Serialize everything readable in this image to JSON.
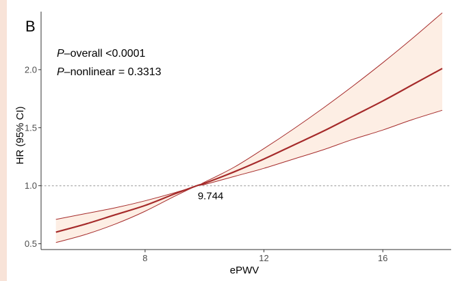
{
  "chart_data": {
    "type": "line",
    "panel_label": "B",
    "xlabel": "ePWV",
    "ylabel": "HR (95% CI)",
    "xlim": [
      4.5,
      18.3
    ],
    "ylim": [
      0.45,
      2.5
    ],
    "x_ticks": [
      8,
      12,
      16
    ],
    "x_tick_labels": [
      "8",
      "12",
      "16"
    ],
    "y_ticks": [
      0.5,
      1.0,
      1.5,
      2.0
    ],
    "y_tick_labels": [
      "0.5",
      "1.0",
      "1.5",
      "2.0"
    ],
    "grid": false,
    "reference_line": {
      "y": 1.0,
      "style": "dotted"
    },
    "reference_point": {
      "x": 9.744,
      "y": 1.0,
      "label": "9.744"
    },
    "annotations": {
      "p_overall_prefix": "P",
      "p_overall_rest": "–overall <0.0001",
      "p_nonlinear_prefix": "P",
      "p_nonlinear_rest": "–nonlinear = 0.3313"
    },
    "colors": {
      "line": "#a52a2a",
      "band_fill": "#fdeee4",
      "reference": "#b3b3b3",
      "axis": "#333333"
    },
    "series": [
      {
        "role": "estimate",
        "x": [
          5.0,
          6.0,
          7.0,
          8.0,
          9.0,
          9.744,
          10.0,
          11.0,
          12.0,
          13.0,
          14.0,
          15.0,
          16.0,
          17.0,
          18.0
        ],
        "values": [
          0.6,
          0.67,
          0.75,
          0.83,
          0.93,
          1.0,
          1.02,
          1.12,
          1.23,
          1.35,
          1.47,
          1.6,
          1.73,
          1.87,
          2.01
        ]
      },
      {
        "role": "upper_ci",
        "x": [
          5.0,
          6.0,
          7.0,
          8.0,
          9.0,
          9.744,
          10.0,
          11.0,
          12.0,
          13.0,
          14.0,
          15.0,
          16.0,
          17.0,
          18.0
        ],
        "values": [
          0.71,
          0.76,
          0.81,
          0.87,
          0.94,
          1.0,
          1.03,
          1.16,
          1.32,
          1.49,
          1.67,
          1.86,
          2.06,
          2.27,
          2.49
        ]
      },
      {
        "role": "lower_ci",
        "x": [
          5.0,
          6.0,
          7.0,
          8.0,
          9.0,
          9.744,
          10.0,
          11.0,
          12.0,
          13.0,
          14.0,
          15.0,
          16.0,
          17.0,
          18.0
        ],
        "values": [
          0.51,
          0.58,
          0.67,
          0.78,
          0.91,
          1.0,
          1.01,
          1.08,
          1.15,
          1.23,
          1.31,
          1.4,
          1.48,
          1.57,
          1.65
        ]
      }
    ]
  }
}
